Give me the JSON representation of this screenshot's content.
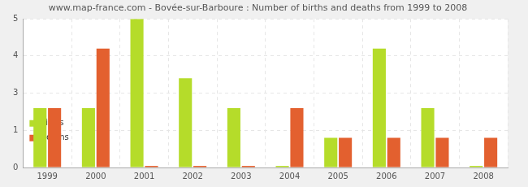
{
  "chart_data": {
    "type": "bar",
    "title": "www.map-france.com - Bovée-sur-Barboure : Number of births and deaths from 1999 to 2008",
    "categories": [
      "1999",
      "2000",
      "2001",
      "2002",
      "2003",
      "2004",
      "2005",
      "2006",
      "2007",
      "2008"
    ],
    "series": [
      {
        "name": "Births",
        "color": "#b5dc2a",
        "values": [
          2,
          2,
          5,
          3,
          2,
          0,
          1,
          4,
          2,
          0
        ]
      },
      {
        "name": "Deaths",
        "color": "#e3602f",
        "values": [
          2,
          4,
          0,
          0,
          0,
          2,
          1,
          1,
          1,
          1
        ]
      }
    ],
    "ylim": [
      0,
      5
    ],
    "yticks": [
      0,
      {
        "value": 1.25,
        "label": "1"
      },
      {
        "value": 2.5,
        "label": "3"
      },
      {
        "value": 3.75,
        "label": "4"
      },
      5
    ],
    "grid": true,
    "legend": "top-right"
  }
}
